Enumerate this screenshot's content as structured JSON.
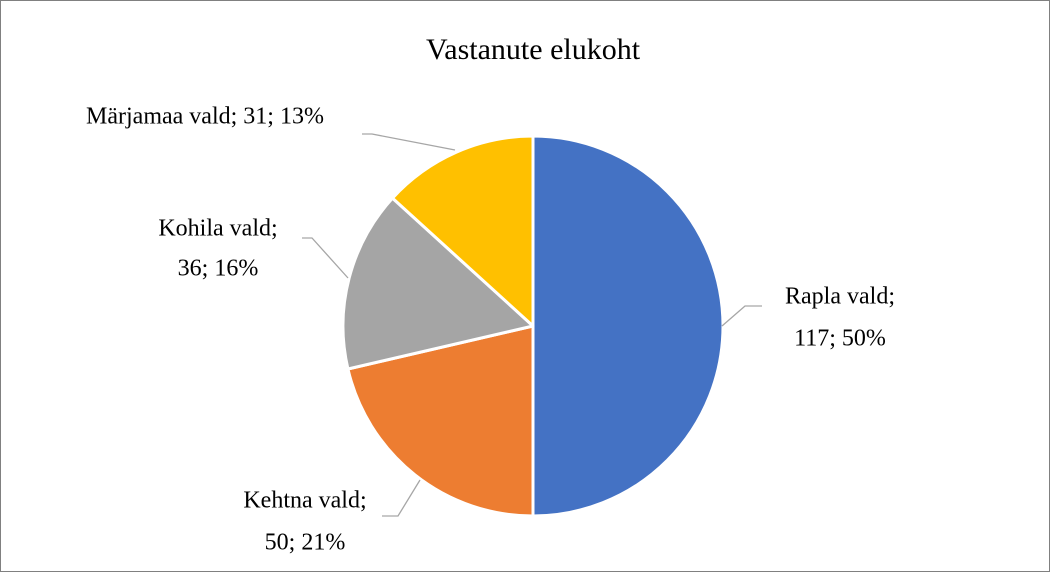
{
  "chart_data": {
    "type": "pie",
    "title": "Vastanute elukoht",
    "values": [
      117,
      50,
      36,
      31
    ],
    "value_labels": [
      [
        "Rapla vald;",
        "117; 50%"
      ],
      [
        "Kehtna vald;",
        "50; 21%"
      ],
      [
        "Kohila vald;",
        "36; 16%"
      ],
      [
        "Märjamaa vald; 31; 13%"
      ]
    ],
    "colors": [
      "#4472c4",
      "#ed7d31",
      "#a5a5a5",
      "#ffc000"
    ]
  }
}
